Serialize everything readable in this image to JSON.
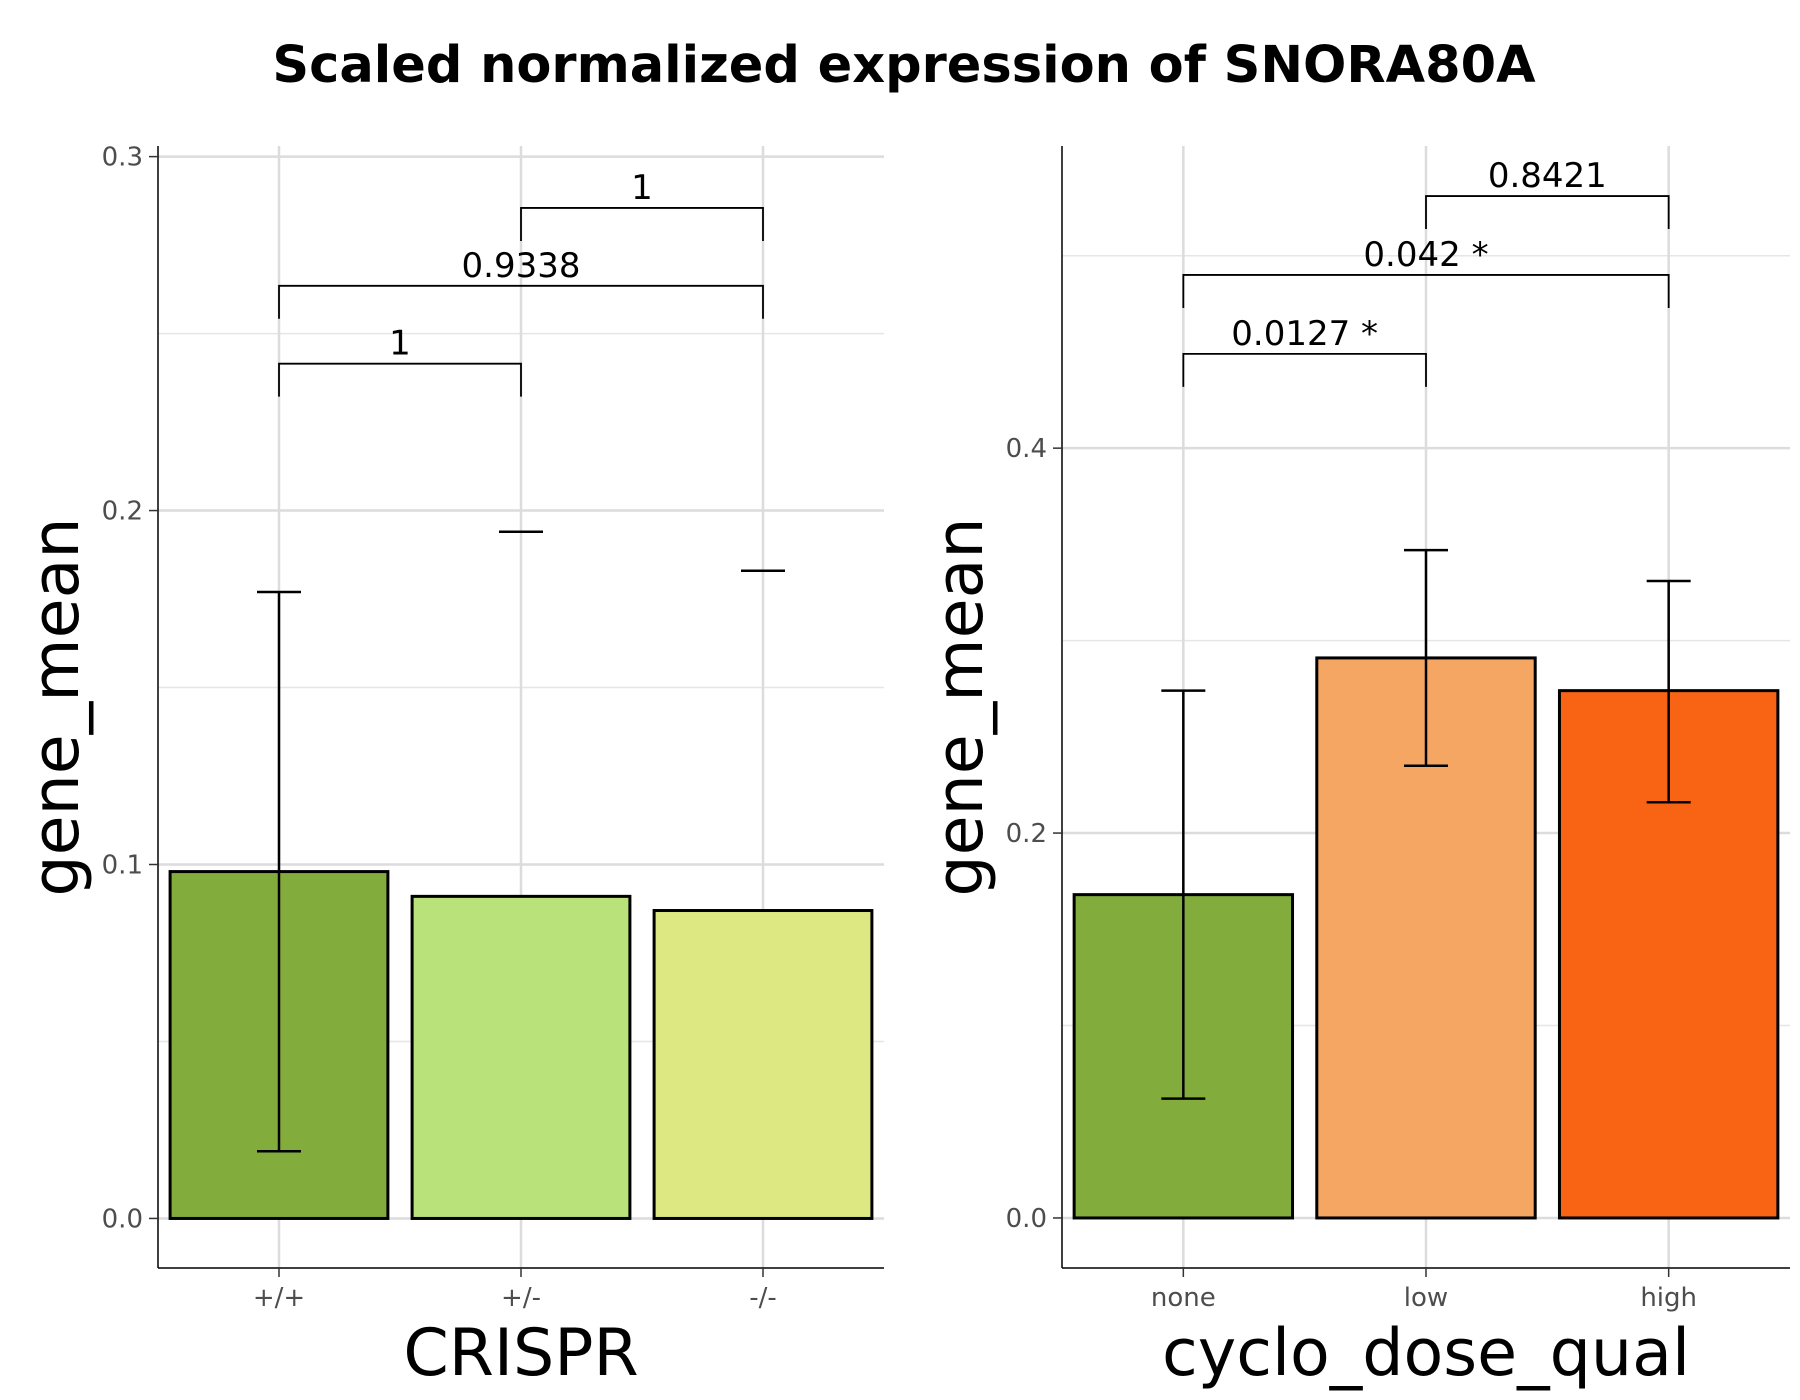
{
  "title": "Scaled normalized expression of SNORA80A",
  "chart_data": [
    {
      "type": "bar",
      "xlabel": "CRISPR",
      "ylabel": "gene_mean",
      "categories": [
        "+/+",
        "+/-",
        "-/-"
      ],
      "values": [
        0.098,
        0.091,
        0.087
      ],
      "error_low": [
        0.019,
        null,
        null
      ],
      "error_high": [
        0.177,
        0.194,
        0.183
      ],
      "colors": [
        "#82ad3d",
        "#b9e27a",
        "#dee883"
      ],
      "ylim": [
        -0.014,
        0.303
      ],
      "yticks": [
        0.0,
        0.1,
        0.2,
        0.3
      ],
      "ytick_labels": [
        "0.0",
        "0.1",
        "0.2",
        "0.3"
      ],
      "grid": true,
      "comparisons": [
        {
          "from": 0,
          "to": 1,
          "y": 0.2415,
          "label": "1"
        },
        {
          "from": 0,
          "to": 2,
          "y": 0.2635,
          "label": "0.9338"
        },
        {
          "from": 1,
          "to": 2,
          "y": 0.2855,
          "label": "1"
        }
      ]
    },
    {
      "type": "bar",
      "xlabel": "cyclo_dose_qual",
      "ylabel": "gene_mean",
      "categories": [
        "none",
        "low",
        "high"
      ],
      "values": [
        0.168,
        0.291,
        0.274
      ],
      "error_low": [
        0.062,
        0.235,
        0.216
      ],
      "error_high": [
        0.274,
        0.347,
        0.331
      ],
      "colors": [
        "#82ad3d",
        "#f5a663",
        "#f86413"
      ],
      "ylim": [
        -0.026,
        0.557
      ],
      "yticks": [
        0.0,
        0.2,
        0.4
      ],
      "ytick_labels": [
        "0.0",
        "0.2",
        "0.4"
      ],
      "grid": true,
      "comparisons": [
        {
          "from": 0,
          "to": 1,
          "y": 0.449,
          "label": "0.0127 *"
        },
        {
          "from": 0,
          "to": 2,
          "y": 0.49,
          "label": "0.042 *"
        },
        {
          "from": 1,
          "to": 2,
          "y": 0.531,
          "label": "0.8421"
        }
      ]
    }
  ]
}
